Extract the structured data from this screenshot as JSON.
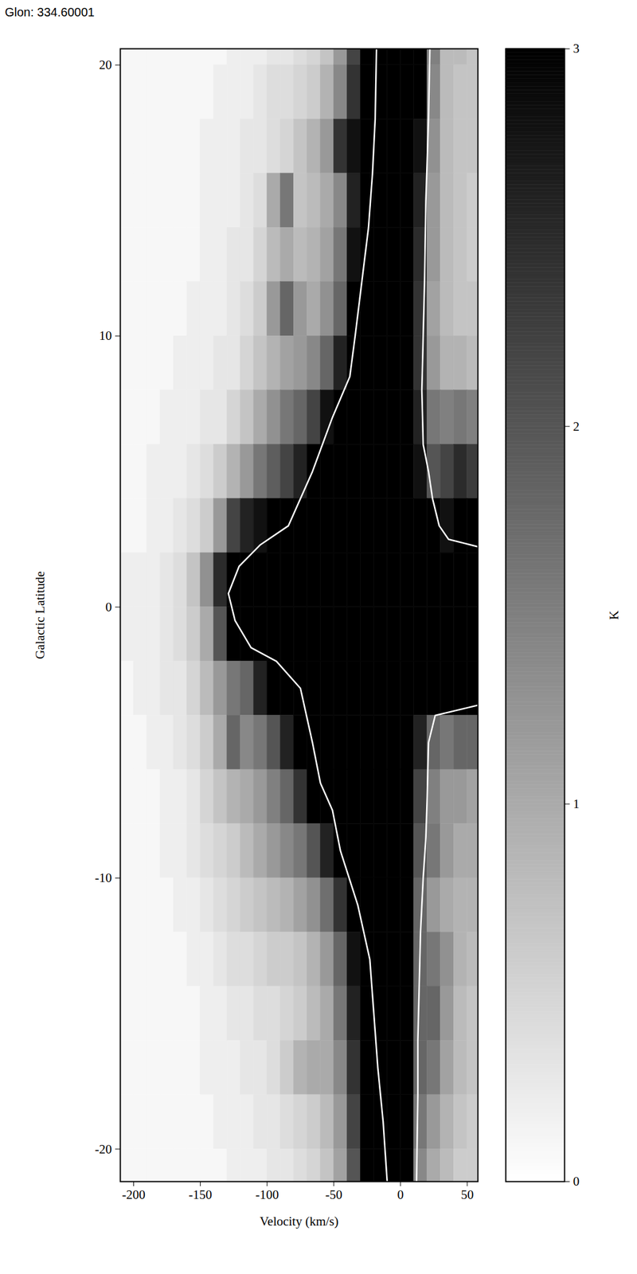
{
  "chart_data": {
    "type": "heatmap",
    "title": "Glon: 334.60001",
    "x_label": "Velocity (km/s)",
    "y_label": "Galactic Latitude",
    "xlim": [
      -210,
      58
    ],
    "ylim": [
      -21.2,
      20.6
    ],
    "xticks": [
      -200,
      -150,
      -100,
      -50,
      0,
      50
    ],
    "yticks": [
      -20,
      -10,
      0,
      10,
      20
    ],
    "velocity_edges": [
      -210,
      -200,
      -190,
      -180,
      -170,
      -160,
      -150,
      -140,
      -130,
      -120,
      -110,
      -100,
      -90,
      -80,
      -70,
      -60,
      -50,
      -40,
      -30,
      -20,
      -10,
      0,
      10,
      20,
      30,
      40,
      50,
      60
    ],
    "latitude_edges": [
      22,
      20,
      18,
      16,
      14,
      12,
      10,
      8,
      6,
      4,
      2,
      0,
      -2,
      -4,
      -6,
      -8,
      -10,
      -12,
      -14,
      -16,
      -18,
      -20,
      -22
    ],
    "values": [
      [
        0.1,
        0.1,
        0.1,
        0.1,
        0.1,
        0.1,
        0.1,
        0.1,
        0.2,
        0.2,
        0.2,
        0.3,
        0.3,
        0.4,
        0.5,
        0.7,
        1.2,
        2.2,
        3,
        3,
        3,
        3,
        3,
        1.5,
        0.8,
        0.8,
        0.7
      ],
      [
        0.1,
        0.1,
        0.1,
        0.1,
        0.1,
        0.1,
        0.1,
        0.2,
        0.2,
        0.2,
        0.3,
        0.4,
        0.4,
        0.5,
        0.6,
        0.9,
        1.4,
        2.4,
        3,
        3,
        3,
        3,
        3,
        1.4,
        0.8,
        0.7,
        0.7
      ],
      [
        0.1,
        0.1,
        0.1,
        0.1,
        0.1,
        0.1,
        0.2,
        0.2,
        0.2,
        0.3,
        0.3,
        0.4,
        0.5,
        0.7,
        0.9,
        1.2,
        2.4,
        2.8,
        3,
        3,
        3,
        3,
        2.8,
        1.3,
        0.8,
        0.7,
        0.7
      ],
      [
        0.1,
        0.1,
        0.1,
        0.1,
        0.1,
        0.1,
        0.2,
        0.2,
        0.2,
        0.3,
        0.4,
        1.0,
        1.6,
        0.7,
        0.8,
        1.0,
        1.4,
        2.6,
        3,
        3,
        3,
        3,
        2.6,
        1.2,
        0.8,
        0.7,
        0.6
      ],
      [
        0.1,
        0.1,
        0.1,
        0.1,
        0.1,
        0.1,
        0.2,
        0.2,
        0.3,
        0.3,
        0.5,
        0.8,
        1.0,
        0.8,
        0.9,
        1.1,
        1.6,
        2.8,
        3,
        3,
        3,
        3,
        2.5,
        1.2,
        0.8,
        0.7,
        0.6
      ],
      [
        0.1,
        0.1,
        0.1,
        0.1,
        0.1,
        0.2,
        0.2,
        0.2,
        0.3,
        0.4,
        0.6,
        1.2,
        1.8,
        1.2,
        1.0,
        1.3,
        1.8,
        3,
        3,
        3,
        3,
        3,
        2.4,
        1.1,
        0.8,
        0.7,
        0.7
      ],
      [
        0.1,
        0.1,
        0.1,
        0.1,
        0.2,
        0.2,
        0.2,
        0.3,
        0.3,
        0.5,
        0.7,
        0.9,
        1.1,
        1.2,
        1.4,
        1.8,
        2.6,
        3,
        3,
        3,
        3,
        3,
        2.4,
        1.2,
        0.9,
        0.9,
        0.8
      ],
      [
        0.1,
        0.1,
        0.1,
        0.2,
        0.2,
        0.2,
        0.3,
        0.3,
        0.5,
        0.7,
        1.0,
        1.3,
        1.6,
        1.8,
        2.2,
        2.8,
        3,
        3,
        3,
        3,
        3,
        3,
        2.6,
        1.6,
        1.5,
        1.6,
        1.5
      ],
      [
        0.1,
        0.1,
        0.2,
        0.2,
        0.2,
        0.3,
        0.4,
        0.6,
        0.9,
        1.2,
        1.6,
        1.9,
        2.2,
        2.6,
        3,
        3,
        3,
        3,
        3,
        3,
        3,
        3,
        2.8,
        2.0,
        2.2,
        2.5,
        2.3
      ],
      [
        0.1,
        0.1,
        0.2,
        0.2,
        0.3,
        0.4,
        0.6,
        1.2,
        2.2,
        2.6,
        2.8,
        3,
        3,
        3,
        3,
        3,
        3,
        3,
        3,
        3,
        3,
        3,
        3,
        3,
        2.8,
        3,
        3
      ],
      [
        0.2,
        0.2,
        0.2,
        0.3,
        0.4,
        0.7,
        1.3,
        2.5,
        3,
        3,
        3,
        3,
        3,
        3,
        3,
        3,
        3,
        3,
        3,
        3,
        3,
        3,
        3,
        3,
        3,
        3,
        3
      ],
      [
        0.2,
        0.2,
        0.2,
        0.3,
        0.4,
        0.6,
        1.0,
        2.0,
        3,
        3,
        3,
        3,
        3,
        3,
        3,
        3,
        3,
        3,
        3,
        3,
        3,
        3,
        3,
        3,
        3,
        3,
        3
      ],
      [
        0.1,
        0.2,
        0.2,
        0.3,
        0.3,
        0.5,
        0.8,
        1.2,
        1.6,
        1.8,
        2.6,
        3,
        3,
        3,
        3,
        3,
        3,
        3,
        3,
        3,
        3,
        3,
        3,
        3,
        3,
        3,
        3
      ],
      [
        0.1,
        0.1,
        0.2,
        0.2,
        0.3,
        0.4,
        0.6,
        1.0,
        1.8,
        1.4,
        1.6,
        2.0,
        2.6,
        3,
        3,
        3,
        3,
        3,
        3,
        3,
        3,
        3,
        2.6,
        1.8,
        1.6,
        1.8,
        1.8
      ],
      [
        0.1,
        0.1,
        0.1,
        0.2,
        0.2,
        0.3,
        0.5,
        0.7,
        0.9,
        1.0,
        1.2,
        1.5,
        1.8,
        2.4,
        3,
        3,
        3,
        3,
        3,
        3,
        3,
        3,
        2.2,
        1.5,
        1.2,
        1.2,
        1.1
      ],
      [
        0.1,
        0.1,
        0.1,
        0.2,
        0.2,
        0.3,
        0.4,
        0.5,
        0.6,
        0.8,
        1.0,
        1.2,
        1.4,
        1.6,
        2.0,
        2.6,
        3,
        3,
        3,
        3,
        3,
        3,
        2.0,
        1.6,
        1.2,
        1.0,
        1.0
      ],
      [
        0.1,
        0.1,
        0.1,
        0.1,
        0.2,
        0.2,
        0.3,
        0.4,
        0.5,
        0.6,
        0.7,
        0.8,
        0.9,
        1.1,
        1.3,
        1.7,
        2.4,
        3,
        3,
        3,
        3,
        3,
        1.8,
        1.2,
        1.0,
        0.9,
        0.9
      ],
      [
        0.1,
        0.1,
        0.1,
        0.1,
        0.1,
        0.2,
        0.2,
        0.3,
        0.4,
        0.4,
        0.5,
        0.6,
        0.6,
        0.7,
        0.9,
        1.2,
        1.8,
        2.8,
        3,
        3,
        3,
        3,
        1.8,
        1.6,
        1.3,
        0.9,
        0.8
      ],
      [
        0.1,
        0.1,
        0.1,
        0.1,
        0.1,
        0.1,
        0.2,
        0.2,
        0.3,
        0.3,
        0.4,
        0.4,
        0.5,
        0.6,
        0.8,
        1.0,
        1.6,
        2.6,
        3,
        3,
        3,
        3,
        1.8,
        1.8,
        1.2,
        0.8,
        0.7
      ],
      [
        0.1,
        0.1,
        0.1,
        0.1,
        0.1,
        0.1,
        0.2,
        0.2,
        0.2,
        0.3,
        0.3,
        0.4,
        0.6,
        0.9,
        1.0,
        1.0,
        1.4,
        2.4,
        3,
        3,
        3,
        3,
        1.8,
        1.6,
        1.1,
        0.8,
        0.7
      ],
      [
        0.1,
        0.1,
        0.1,
        0.1,
        0.1,
        0.1,
        0.1,
        0.2,
        0.2,
        0.2,
        0.3,
        0.3,
        0.4,
        0.5,
        0.6,
        0.8,
        1.2,
        2.2,
        3,
        3,
        3,
        3,
        1.6,
        1.2,
        0.9,
        0.7,
        0.6
      ],
      [
        0.1,
        0.1,
        0.1,
        0.1,
        0.1,
        0.1,
        0.1,
        0.1,
        0.2,
        0.2,
        0.2,
        0.3,
        0.3,
        0.4,
        0.5,
        0.7,
        1.1,
        2.0,
        3,
        3,
        3,
        3,
        1.4,
        1.0,
        0.8,
        0.6,
        0.6
      ]
    ],
    "contours": [
      {
        "latitude": [
          20.6,
          18,
          16,
          14,
          12,
          10,
          8.5,
          7,
          5,
          3,
          2.3,
          1.5,
          0.5,
          -0.5,
          -1.5,
          -2,
          -3,
          -5,
          -6.5,
          -7.5,
          -9,
          -11,
          -13,
          -15,
          -17,
          -19,
          -21.2
        ],
        "velocity": [
          -18,
          -19,
          -21,
          -24,
          -29,
          -34,
          -38,
          -51,
          -66,
          -84,
          -105,
          -121,
          -129,
          -124,
          -112,
          -93,
          -75,
          -66,
          -60,
          -51,
          -45,
          -32,
          -23,
          -20,
          -17,
          -13,
          -10
        ]
      },
      {
        "latitude": [
          20.6,
          18,
          15,
          12,
          10,
          8,
          6,
          5,
          4,
          3,
          2.5,
          2.2
        ],
        "velocity": [
          22,
          21,
          19,
          18,
          17,
          16,
          17,
          21,
          24,
          29,
          36,
          60
        ]
      },
      {
        "latitude": [
          -3.6,
          -4,
          -5,
          -7,
          -8.5,
          -10,
          -12,
          -14,
          -16,
          -18,
          -21.2
        ],
        "velocity": [
          60,
          26,
          21,
          20,
          19,
          17,
          15,
          14,
          13,
          13,
          12
        ]
      }
    ],
    "colorbar": {
      "range": [
        0,
        3
      ],
      "ticks": [
        0,
        1,
        2,
        3
      ],
      "label": "K"
    }
  }
}
